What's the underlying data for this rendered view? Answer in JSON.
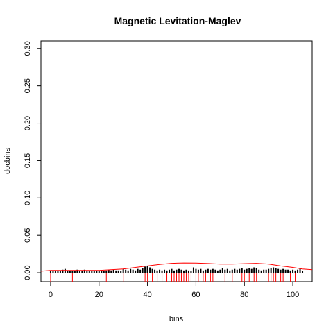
{
  "chart_data": {
    "type": "bar",
    "title": "Magnetic Levitation-Maglev",
    "xlabel": "bins",
    "ylabel": "docbins",
    "xlim": [
      -4,
      108
    ],
    "ylim": [
      -0.012,
      0.31
    ],
    "x_ticks": [
      0,
      20,
      40,
      60,
      80,
      100
    ],
    "y_ticks": [
      0.0,
      0.05,
      0.1,
      0.15,
      0.2,
      0.25,
      0.3
    ],
    "x_tick_labels": [
      "0",
      "20",
      "40",
      "60",
      "80",
      "100"
    ],
    "y_tick_labels": [
      "0.00",
      "0.05",
      "0.10",
      "0.15",
      "0.20",
      "0.25",
      "0.30"
    ],
    "grid": false,
    "legend": "none",
    "colors": {
      "bars": "#000000",
      "curve": "#ff0000",
      "rug": "#ff0000",
      "axis": "#000000"
    },
    "bars": {
      "x": [
        0,
        1,
        2,
        3,
        4,
        5,
        6,
        7,
        8,
        9,
        10,
        11,
        12,
        13,
        14,
        15,
        16,
        17,
        18,
        19,
        20,
        21,
        22,
        23,
        24,
        25,
        26,
        27,
        28,
        29,
        30,
        31,
        32,
        33,
        34,
        35,
        36,
        37,
        38,
        39,
        40,
        41,
        42,
        43,
        44,
        45,
        46,
        47,
        48,
        49,
        50,
        51,
        52,
        53,
        54,
        55,
        56,
        57,
        58,
        59,
        60,
        61,
        62,
        63,
        64,
        65,
        66,
        67,
        68,
        69,
        70,
        71,
        72,
        73,
        74,
        75,
        76,
        77,
        78,
        79,
        80,
        81,
        82,
        83,
        84,
        85,
        86,
        87,
        88,
        89,
        90,
        91,
        92,
        93,
        94,
        95,
        96,
        97,
        98,
        99,
        100,
        101,
        102,
        103,
        104
      ],
      "values": [
        0.003,
        0.002,
        0.003,
        0.002,
        0.002,
        0.004,
        0.005,
        0.002,
        0.003,
        0.002,
        0.003,
        0.004,
        0.003,
        0.002,
        0.004,
        0.003,
        0.003,
        0.002,
        0.003,
        0.002,
        0.003,
        0.002,
        0.002,
        0.003,
        0.004,
        0.003,
        0.004,
        0.003,
        0.003,
        0.002,
        0.005,
        0.004,
        0.003,
        0.005,
        0.004,
        0.003,
        0.005,
        0.004,
        0.006,
        0.008,
        0.009,
        0.007,
        0.005,
        0.004,
        0.003,
        0.004,
        0.003,
        0.004,
        0.003,
        0.004,
        0.005,
        0.003,
        0.004,
        0.005,
        0.004,
        0.003,
        0.004,
        0.003,
        0.002,
        0.007,
        0.005,
        0.004,
        0.005,
        0.003,
        0.004,
        0.005,
        0.004,
        0.005,
        0.004,
        0.003,
        0.004,
        0.006,
        0.004,
        0.005,
        0.003,
        0.004,
        0.005,
        0.004,
        0.005,
        0.006,
        0.004,
        0.005,
        0.006,
        0.005,
        0.007,
        0.006,
        0.004,
        0.003,
        0.004,
        0.004,
        0.005,
        0.006,
        0.007,
        0.006,
        0.005,
        0.004,
        0.005,
        0.004,
        0.004,
        0.003,
        0.004,
        0.003,
        0.004,
        0.006,
        0.002
      ]
    },
    "density_curve": {
      "x": [
        -4,
        0,
        5,
        10,
        15,
        20,
        25,
        30,
        35,
        40,
        45,
        50,
        55,
        60,
        65,
        70,
        75,
        80,
        85,
        90,
        95,
        100,
        104,
        108
      ],
      "y": [
        0.002,
        0.003,
        0.003,
        0.003,
        0.003,
        0.003,
        0.004,
        0.005,
        0.007,
        0.009,
        0.011,
        0.0125,
        0.013,
        0.0128,
        0.0122,
        0.0115,
        0.0115,
        0.012,
        0.0125,
        0.0115,
        0.009,
        0.007,
        0.005,
        0.004
      ]
    },
    "rug": {
      "x": [
        0,
        9,
        23,
        30,
        39,
        40,
        42,
        44,
        46,
        48,
        50,
        51,
        52,
        53,
        54,
        55,
        56,
        57,
        58,
        60,
        61,
        63,
        64,
        66,
        67,
        72,
        75,
        79,
        80,
        82,
        84,
        85,
        90,
        91,
        92,
        93,
        95,
        96,
        99,
        101
      ]
    }
  }
}
